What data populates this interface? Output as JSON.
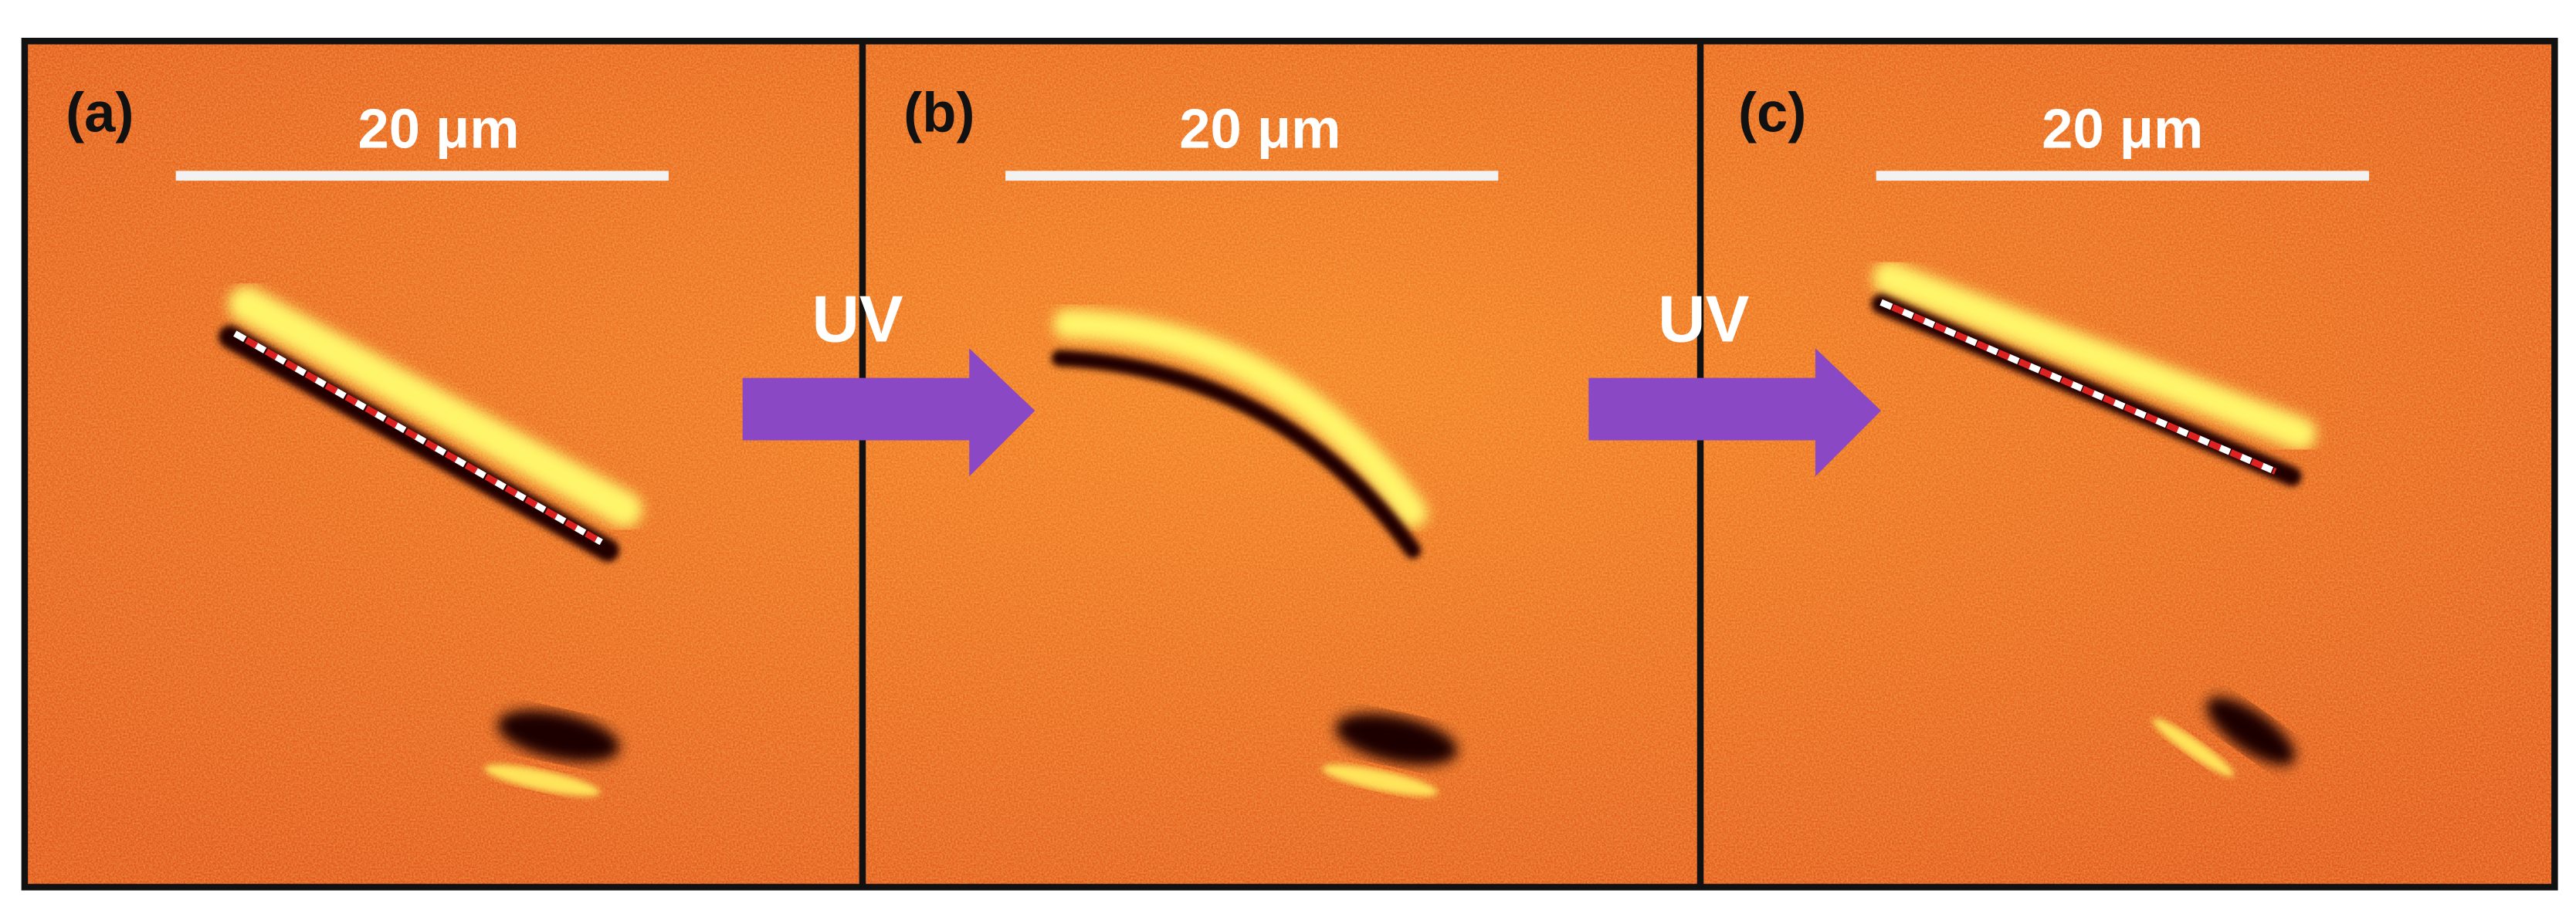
{
  "panels": [
    {
      "label": "(a)",
      "scale_bar": "20 μm"
    },
    {
      "label": "(b)",
      "scale_bar": "20 μm"
    },
    {
      "label": "(c)",
      "scale_bar": "20 μm"
    }
  ],
  "arrows": [
    {
      "label": "UV"
    },
    {
      "label": "UV"
    }
  ]
}
